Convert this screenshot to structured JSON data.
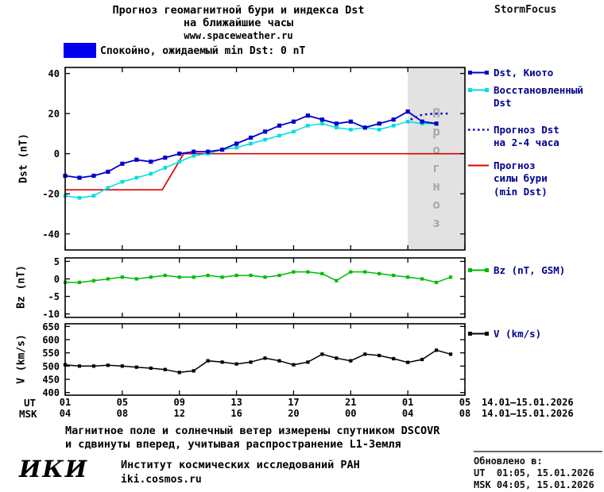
{
  "header": {
    "title_line1": "Прогноз геомагнитной бури и индекса Dst",
    "title_line2": "на ближайшие часы",
    "url": "www.spaceweather.ru",
    "brand": "StormFocus"
  },
  "status_banner": {
    "label": "Спокойно, ожидаемый min Dst: 0 nT",
    "color": "#0000ee"
  },
  "colors": {
    "kyoto_blue": "#0000cc",
    "reconstructed_cyan": "#00dde0",
    "forecast_dotted_blue": "#0000cc",
    "storm_red": "#dd0000",
    "bz_green": "#00bb00",
    "v_black": "#000000",
    "forecast_region_gray": "#e2e2e2",
    "legend_text_navy": "#000090"
  },
  "chart_data": [
    {
      "type": "line",
      "title": "Прогноз геомагнитной бури и индекса Dst на ближайшие часы",
      "ylabel": "Dst (nT)",
      "ylim": [
        -48,
        43
      ],
      "yticks": [
        40,
        20,
        0,
        -20,
        -40
      ],
      "x_hours_range": [
        1,
        29
      ],
      "forecast_region": {
        "start_hour": 25,
        "label": "Прогноз"
      },
      "series": [
        {
          "name": "Прогноз силы бури (min Dst)",
          "color": "#dd0000",
          "style": "solid",
          "marker": "none",
          "width": 1.7,
          "x": [
            1,
            7.8,
            9.3,
            29
          ],
          "y": [
            -18,
            -18,
            0,
            0
          ]
        },
        {
          "name": "Восстановленный Dst",
          "color": "#00dde0",
          "style": "solid",
          "marker": "square",
          "msize": 4.6,
          "width": 1.5,
          "x_start": 1,
          "x_step": 1,
          "values": [
            -21,
            -22,
            -21,
            -17,
            -14,
            -12,
            -10,
            -7,
            -4,
            -1,
            0,
            2,
            3,
            5,
            7,
            9,
            11,
            14,
            15,
            13,
            12,
            13,
            12,
            14,
            16,
            15,
            15
          ]
        },
        {
          "name": "Dst, Киото",
          "color": "#0000cc",
          "style": "solid",
          "marker": "square",
          "msize": 5.2,
          "width": 1.8,
          "x_start": 1,
          "x_step": 1,
          "values": [
            -11,
            -12,
            -11,
            -9,
            -5,
            -3,
            -4,
            -2,
            0,
            1,
            1,
            2,
            5,
            8,
            11,
            14,
            16,
            19,
            17,
            15,
            16,
            13,
            15,
            17,
            21,
            16,
            15
          ]
        },
        {
          "name": "Прогноз Dst на 2-4 часа",
          "color": "#0000cc",
          "style": "dotted",
          "marker": "none",
          "width": 2.5,
          "x": [
            25.2,
            26,
            27,
            28
          ],
          "y": [
            17,
            19.5,
            20,
            20
          ]
        }
      ]
    },
    {
      "type": "line",
      "ylabel": "Bz (nT)",
      "ylim": [
        -11,
        6
      ],
      "yticks": [
        5,
        0,
        -5,
        -10
      ],
      "x_hours_range": [
        1,
        29
      ],
      "series": [
        {
          "name": "Bz (nT, GSM)",
          "color": "#00bb00",
          "style": "solid",
          "marker": "square",
          "msize": 4.2,
          "width": 1.5,
          "x_start": 1,
          "x_step": 1,
          "values": [
            -1,
            -1,
            -0.5,
            0,
            0.5,
            0,
            0.5,
            1,
            0.5,
            0.5,
            1,
            0.5,
            1,
            1,
            0.5,
            1,
            2,
            2,
            1.5,
            -0.5,
            2,
            2,
            1.5,
            1,
            0.5,
            0,
            -1,
            0.5
          ]
        }
      ]
    },
    {
      "type": "line",
      "ylabel": "V (km/s)",
      "ylim": [
        390,
        660
      ],
      "yticks": [
        650,
        600,
        550,
        500,
        450,
        400
      ],
      "x_hours_range": [
        1,
        29
      ],
      "series": [
        {
          "name": "V (km/s)",
          "color": "#000000",
          "style": "solid",
          "marker": "square",
          "msize": 4.2,
          "width": 1.5,
          "x_start": 1,
          "x_step": 1,
          "values": [
            505,
            500,
            500,
            503,
            500,
            496,
            492,
            487,
            476,
            482,
            520,
            515,
            508,
            515,
            530,
            520,
            505,
            515,
            545,
            530,
            520,
            545,
            540,
            528,
            514,
            525,
            560,
            545
          ]
        }
      ]
    }
  ],
  "xaxis": {
    "ut_label": "UT",
    "msk_label": "MSK",
    "ut_ticks": [
      "01",
      "05",
      "09",
      "13",
      "17",
      "21",
      "01",
      "05"
    ],
    "msk_ticks": [
      "04",
      "08",
      "12",
      "16",
      "20",
      "00",
      "04",
      "08"
    ],
    "date_range": "14.01–15.01.2026"
  },
  "legend": {
    "dst_kyoto": "Dst, Киото",
    "dst_recon": "Восстановленный\nDst",
    "dst_forecast": "Прогноз Dst\nна 2-4 часа",
    "dst_storm": "Прогноз\nсилы бури\n(min Dst)",
    "bz": "Bz (nT, GSM)",
    "v": "V (km/s)"
  },
  "footer": {
    "note_line1": "Магнитное поле и солнечный ветер измерены спутником DSCOVR",
    "note_line2": "и сдвинуты вперед, учитывая распространение L1-Земля",
    "logo": "ИКИ",
    "institute": "Институт космических исследований РАН",
    "site": "iki.cosmos.ru",
    "updated_title": "Обновлено в:",
    "updated_ut": "UT  01:05, 15.01.2026",
    "updated_msk": "MSK 04:05, 15.01.2026"
  }
}
